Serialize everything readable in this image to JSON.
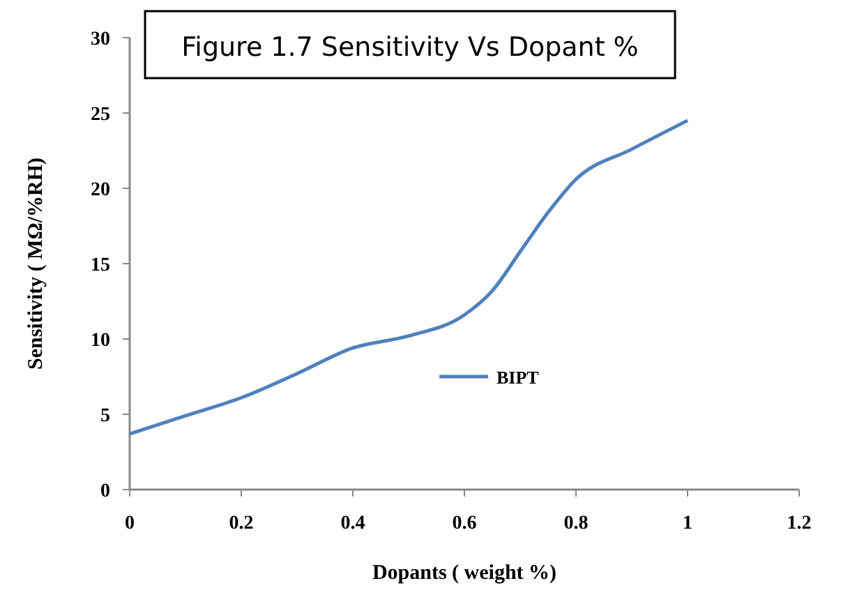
{
  "chart_data": {
    "type": "line",
    "title": "Figure 1.7 Sensitivity Vs Dopant %",
    "xlabel": "Dopants ( weight %)",
    "ylabel": "Sensitivity ( MΩ/%RH)",
    "x": [
      0,
      0.1,
      0.2,
      0.3,
      0.4,
      0.5,
      0.6,
      0.65,
      0.7,
      0.75,
      0.8,
      0.9,
      1.0
    ],
    "series": [
      {
        "name": "BIPT",
        "color": "#4f81bd",
        "values": [
          3.7,
          4.9,
          6.1,
          7.7,
          9.4,
          10.2,
          11.6,
          13.2,
          15.8,
          18.4,
          20.6,
          22.6,
          24.5
        ]
      }
    ],
    "xlim": [
      0,
      1.2
    ],
    "xticks": [
      0,
      0.2,
      0.4,
      0.6,
      0.8,
      1,
      1.2
    ],
    "ylim": [
      0,
      30
    ],
    "yticks": [
      0,
      5,
      10,
      15,
      20,
      25,
      30
    ],
    "legend": "right",
    "marker": "none",
    "line_style": "solid",
    "grid": false
  }
}
